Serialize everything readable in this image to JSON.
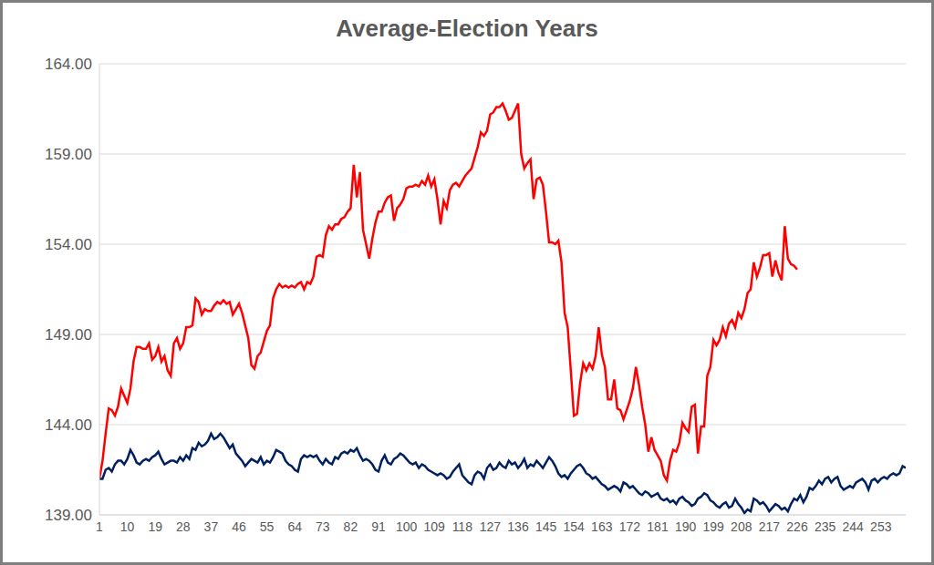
{
  "chart_data": {
    "type": "line",
    "title": "Average-Election Years",
    "x": [
      1,
      2,
      3,
      4,
      5,
      6,
      7,
      8,
      9,
      10,
      11,
      12,
      13,
      14,
      15,
      16,
      17,
      18,
      19,
      20,
      21,
      22,
      23,
      24,
      25,
      26,
      27,
      28,
      29,
      30,
      31,
      32,
      33,
      34,
      35,
      36,
      37,
      38,
      39,
      40,
      41,
      42,
      43,
      44,
      45,
      46,
      47,
      48,
      49,
      50,
      51,
      52,
      53,
      54,
      55,
      56,
      57,
      58,
      59,
      60,
      61,
      62,
      63,
      64,
      65,
      66,
      67,
      68,
      69,
      70,
      71,
      72,
      73,
      74,
      75,
      76,
      77,
      78,
      79,
      80,
      81,
      82,
      83,
      84,
      85,
      86,
      87,
      88,
      89,
      90,
      91,
      92,
      93,
      94,
      95,
      96,
      97,
      98,
      99,
      100,
      101,
      102,
      103,
      104,
      105,
      106,
      107,
      108,
      109,
      110,
      111,
      112,
      113,
      114,
      115,
      116,
      117,
      118,
      119,
      120,
      121,
      122,
      123,
      124,
      125,
      126,
      127,
      128,
      129,
      130,
      131,
      132,
      133,
      134,
      135,
      136,
      137,
      138,
      139,
      140,
      141,
      142,
      143,
      144,
      145,
      146,
      147,
      148,
      149,
      150,
      151,
      152,
      153,
      154,
      155,
      156,
      157,
      158,
      159,
      160,
      161,
      162,
      163,
      164,
      165,
      166,
      167,
      168,
      169,
      170,
      171,
      172,
      173,
      174,
      175,
      176,
      177,
      178,
      179,
      180,
      181,
      182,
      183,
      184,
      185,
      186,
      187,
      188,
      189,
      190,
      191,
      192,
      193,
      194,
      195,
      196,
      197,
      198,
      199,
      200,
      201,
      202,
      203,
      204,
      205,
      206,
      207,
      208,
      209,
      210,
      211,
      212,
      213,
      214,
      215,
      216,
      217,
      218,
      219,
      220,
      221,
      222,
      223,
      224,
      225,
      226,
      227,
      228,
      229,
      230,
      231,
      232,
      233,
      234,
      235,
      236,
      237,
      238,
      239,
      240,
      241,
      242,
      243,
      244,
      245,
      246,
      247,
      248,
      249,
      250,
      251,
      252,
      253,
      254,
      255,
      256,
      257,
      258,
      259,
      260,
      261
    ],
    "series": [
      {
        "color": "#ff0000",
        "values": [
          141.0,
          142.0,
          143.5,
          144.9,
          144.8,
          144.5,
          145.0,
          146.0,
          145.6,
          145.2,
          146.0,
          147.5,
          148.3,
          148.3,
          148.2,
          148.2,
          148.5,
          147.6,
          147.8,
          148.3,
          147.5,
          147.8,
          147.0,
          146.7,
          148.5,
          148.8,
          148.2,
          148.5,
          149.4,
          149.4,
          149.5,
          151.0,
          150.8,
          150.1,
          150.4,
          150.3,
          150.3,
          150.6,
          150.8,
          150.7,
          150.9,
          150.7,
          150.8,
          150.1,
          150.4,
          150.7,
          150.2,
          149.5,
          148.8,
          147.3,
          147.1,
          147.8,
          148.0,
          148.6,
          149.2,
          149.5,
          151.0,
          151.5,
          151.8,
          151.6,
          151.7,
          151.6,
          151.7,
          151.6,
          151.8,
          151.9,
          151.5,
          151.9,
          151.8,
          152.2,
          153.3,
          153.4,
          153.3,
          154.5,
          155.0,
          154.8,
          155.1,
          155.1,
          155.4,
          155.5,
          155.8,
          156.0,
          158.4,
          156.6,
          158.0,
          154.8,
          154.0,
          153.2,
          154.3,
          155.2,
          155.8,
          155.8,
          156.3,
          156.6,
          156.7,
          155.3,
          156.0,
          156.2,
          156.5,
          157.1,
          157.2,
          157.2,
          157.3,
          157.2,
          157.5,
          157.3,
          157.8,
          157.2,
          157.6,
          156.5,
          155.1,
          156.4,
          156.0,
          157.0,
          157.3,
          157.4,
          157.2,
          157.5,
          157.8,
          158.0,
          158.2,
          158.8,
          159.4,
          160.2,
          160.0,
          160.3,
          161.2,
          161.3,
          161.6,
          161.6,
          161.8,
          161.4,
          160.9,
          161.0,
          161.4,
          161.8,
          159.0,
          158.2,
          158.5,
          158.7,
          156.5,
          157.6,
          157.7,
          157.3,
          155.8,
          154.1,
          154.1,
          154.0,
          154.2,
          153.0,
          150.2,
          149.4,
          147.0,
          144.5,
          144.6,
          146.3,
          147.4,
          147.0,
          147.4,
          147.1,
          147.8,
          149.4,
          147.9,
          147.2,
          145.4,
          145.4,
          146.5,
          144.9,
          144.8,
          144.3,
          144.8,
          145.3,
          146.0,
          147.2,
          146.2,
          145.0,
          144.0,
          142.5,
          143.3,
          142.6,
          142.3,
          142.0,
          141.2,
          140.9,
          142.0,
          142.6,
          142.5,
          143.0,
          144.1,
          143.8,
          143.6,
          145.0,
          145.1,
          142.4,
          143.9,
          143.9,
          146.7,
          147.2,
          148.7,
          148.4,
          148.7,
          149.4,
          148.9,
          149.6,
          149.8,
          149.4,
          150.2,
          149.9,
          150.4,
          151.3,
          151.5,
          153.0,
          152.2,
          152.7,
          153.4,
          153.4,
          153.5,
          152.2,
          153.1,
          152.4,
          152.0,
          155.0,
          153.2,
          152.9,
          152.8,
          152.6,
          null,
          null,
          null,
          null,
          null,
          null,
          null,
          null,
          null,
          null,
          null,
          null,
          null,
          null,
          null,
          null,
          null,
          null,
          null,
          null,
          null,
          null,
          null,
          null,
          null,
          null,
          null,
          null,
          null,
          null,
          null,
          null,
          null,
          null,
          null
        ]
      },
      {
        "color": "#002060",
        "values": [
          141.0,
          141.0,
          141.5,
          141.6,
          141.4,
          141.8,
          142.0,
          142.0,
          141.8,
          142.1,
          142.6,
          142.3,
          141.9,
          141.8,
          142.0,
          142.1,
          142.0,
          142.2,
          142.3,
          142.5,
          142.1,
          141.8,
          141.9,
          142.0,
          142.0,
          141.9,
          142.2,
          142.0,
          142.3,
          142.1,
          142.7,
          142.6,
          143.0,
          142.8,
          142.9,
          143.1,
          143.5,
          143.2,
          143.3,
          143.5,
          143.3,
          143.0,
          142.7,
          142.9,
          142.4,
          142.2,
          142.0,
          141.7,
          141.9,
          142.1,
          142.0,
          141.9,
          142.2,
          141.8,
          142.0,
          141.9,
          142.2,
          142.6,
          142.5,
          142.4,
          142.0,
          141.8,
          141.7,
          141.5,
          141.4,
          142.1,
          142.3,
          142.2,
          142.3,
          142.2,
          142.3,
          142.0,
          141.8,
          142.1,
          141.9,
          141.8,
          142.2,
          142.1,
          142.4,
          142.5,
          142.4,
          142.6,
          142.5,
          142.7,
          142.3,
          142.0,
          142.1,
          142.0,
          141.8,
          141.5,
          141.4,
          142.0,
          142.3,
          141.9,
          141.8,
          142.1,
          142.2,
          142.4,
          142.3,
          142.1,
          141.9,
          141.8,
          141.9,
          141.6,
          141.8,
          141.7,
          141.5,
          141.4,
          141.3,
          141.2,
          141.3,
          141.2,
          141.0,
          141.1,
          141.4,
          141.6,
          141.8,
          141.2,
          141.0,
          140.8,
          140.7,
          141.2,
          141.4,
          141.3,
          141.0,
          141.6,
          141.8,
          141.5,
          141.6,
          141.9,
          141.7,
          141.6,
          142.0,
          141.8,
          141.9,
          141.6,
          141.8,
          142.1,
          141.6,
          141.8,
          141.7,
          142.0,
          141.8,
          141.6,
          141.9,
          142.2,
          142.0,
          141.7,
          141.3,
          141.1,
          141.2,
          141.0,
          141.3,
          141.5,
          141.7,
          141.8,
          141.6,
          141.3,
          141.2,
          141.0,
          141.1,
          140.9,
          140.7,
          140.6,
          140.4,
          140.5,
          140.6,
          140.5,
          140.3,
          140.8,
          140.7,
          140.5,
          140.6,
          140.4,
          140.2,
          140.1,
          140.3,
          140.2,
          140.0,
          140.1,
          140.2,
          139.9,
          139.8,
          139.9,
          139.7,
          139.8,
          139.6,
          139.9,
          140.0,
          139.8,
          139.7,
          139.5,
          139.6,
          139.9,
          140.0,
          140.2,
          140.1,
          139.8,
          139.7,
          139.5,
          139.4,
          139.6,
          139.7,
          139.4,
          139.5,
          139.9,
          139.6,
          139.4,
          139.1,
          139.3,
          139.2,
          139.9,
          139.8,
          139.6,
          139.7,
          139.5,
          139.2,
          139.4,
          139.6,
          139.5,
          139.3,
          139.4,
          139.2,
          139.6,
          139.9,
          139.8,
          140.1,
          139.7,
          140.0,
          140.5,
          140.4,
          140.6,
          140.9,
          140.7,
          141.0,
          141.1,
          140.8,
          141.0,
          141.1,
          140.6,
          140.4,
          140.5,
          140.6,
          140.5,
          140.8,
          140.9,
          141.0,
          140.8,
          140.4,
          140.9,
          141.0,
          140.8,
          141.0,
          141.1,
          141.0,
          141.2,
          141.3,
          141.2,
          141.3,
          141.7,
          141.6
        ]
      }
    ],
    "xlim": [
      1,
      261
    ],
    "xticks": [
      1,
      10,
      19,
      28,
      37,
      46,
      55,
      64,
      73,
      82,
      91,
      100,
      109,
      118,
      127,
      136,
      145,
      154,
      163,
      172,
      181,
      190,
      199,
      208,
      217,
      226,
      235,
      244,
      253
    ],
    "ylim": [
      139,
      164
    ],
    "yticks": [
      {
        "value": 139,
        "label": "139.00"
      },
      {
        "value": 144,
        "label": "144.00"
      },
      {
        "value": 149,
        "label": "149.00"
      },
      {
        "value": 154,
        "label": "154.00"
      },
      {
        "value": 159,
        "label": "159.00"
      },
      {
        "value": 164,
        "label": "164.00"
      }
    ],
    "grid": true
  }
}
